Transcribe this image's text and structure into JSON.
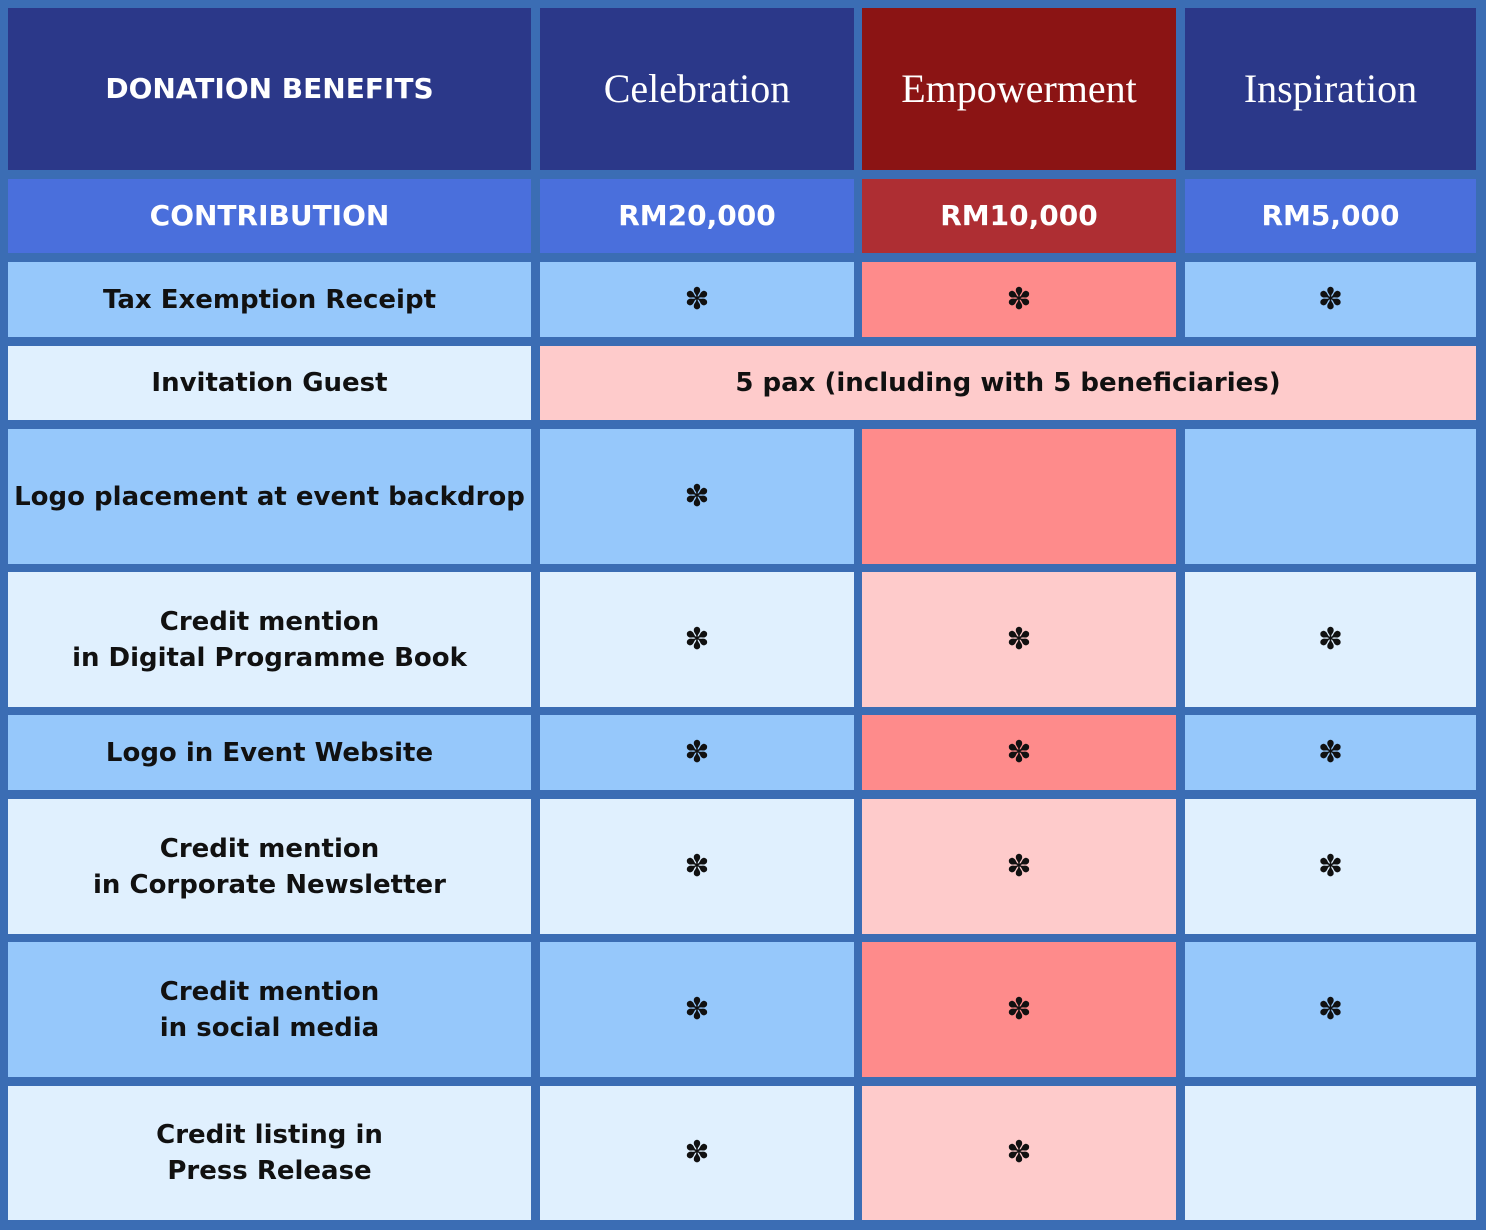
{
  "header": {
    "title": "DONATION BENEFITS",
    "tiers": [
      "Celebration",
      "Empowerment",
      "Inspiration"
    ]
  },
  "contribution": {
    "label": "CONTRIBUTION",
    "amounts": [
      "RM20,000",
      "RM10,000",
      "RM5,000"
    ]
  },
  "rows": [
    {
      "label": "Tax Exemption Receipt",
      "cells": [
        "✽",
        "✽",
        "✽"
      ]
    },
    {
      "label": "Invitation Guest",
      "merged": "5 pax (including with 5 beneficiaries)"
    },
    {
      "label": "Logo placement at event backdrop",
      "cells": [
        "✽",
        null,
        null
      ]
    },
    {
      "label": "Credit mention\nin Digital Programme Book",
      "cells": [
        "✽",
        "✽",
        "✽"
      ]
    },
    {
      "label": "Logo in Event Website",
      "cells": [
        "✽",
        "✽",
        "✽"
      ]
    },
    {
      "label": "Credit mention\nin Corporate Newsletter",
      "cells": [
        "✽",
        "✽",
        "✽"
      ]
    },
    {
      "label": "Credit mention\nin social media",
      "cells": [
        "✽",
        "✽",
        "✽"
      ]
    },
    {
      "label": "Credit listing in\nPress Release",
      "cells": [
        "✽",
        "✽",
        null
      ]
    }
  ]
}
